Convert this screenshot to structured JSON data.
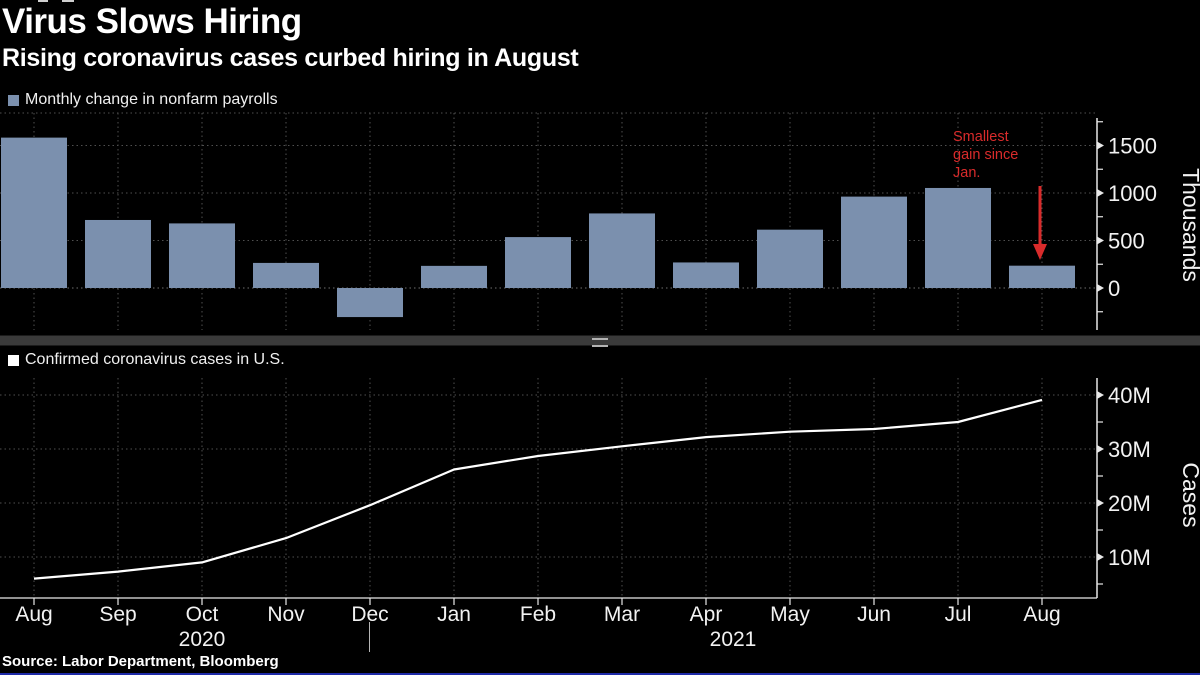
{
  "header": {
    "title": "Virus Slows Hiring",
    "subtitle": "Rising coronavirus cases curbed hiring in August"
  },
  "source": "Source: Labor Department, Bloomberg",
  "colors": {
    "background": "#000000",
    "bar": "#7B90AE",
    "line": "#FFFFFF",
    "grid": "#4f4f4f",
    "zero_grid": "#6e6e6e",
    "axis": "#e8e8e8",
    "tick_text": "#f2f2f2",
    "annotation_red": "#d92b2b"
  },
  "x_axis": {
    "months": [
      "Aug",
      "Sep",
      "Oct",
      "Nov",
      "Dec",
      "Jan",
      "Feb",
      "Mar",
      "Apr",
      "May",
      "Jun",
      "Jul",
      "Aug"
    ],
    "years": [
      {
        "label": "2020"
      },
      {
        "label": "2021"
      }
    ]
  },
  "chart_data": [
    {
      "type": "bar",
      "legend": "Monthly change in nonfarm payrolls",
      "ylabel": "Thousands",
      "categories": [
        "Aug 2020",
        "Sep 2020",
        "Oct 2020",
        "Nov 2020",
        "Dec 2020",
        "Jan 2021",
        "Feb 2021",
        "Mar 2021",
        "Apr 2021",
        "May 2021",
        "Jun 2021",
        "Jul 2021",
        "Aug 2021"
      ],
      "values": [
        1583,
        716,
        680,
        264,
        -306,
        233,
        536,
        785,
        269,
        614,
        962,
        1053,
        235
      ],
      "yticks": [
        0,
        500,
        1000,
        1500
      ],
      "ytick_labels": [
        "0",
        "500",
        "1000",
        "1500"
      ],
      "ylim": [
        -450,
        1770
      ],
      "grid": true,
      "legend_position": "top-left",
      "annotation": {
        "lines": [
          "Smallest",
          "gain since",
          "Jan."
        ],
        "target_category": "Aug 2021",
        "target_value": 235
      }
    },
    {
      "type": "line",
      "legend": "Confirmed coronavirus cases in U.S.",
      "ylabel": "Cases",
      "x": [
        "Aug 2020",
        "Sep 2020",
        "Oct 2020",
        "Nov 2020",
        "Dec 2020",
        "Jan 2021",
        "Feb 2021",
        "Mar 2021",
        "Apr 2021",
        "May 2021",
        "Jun 2021",
        "Jul 2021",
        "Aug 2021"
      ],
      "values_millions": [
        6.0,
        7.3,
        9.0,
        13.5,
        19.6,
        26.2,
        28.7,
        30.5,
        32.2,
        33.2,
        33.7,
        35.0,
        39.1
      ],
      "yticks": [
        10,
        20,
        30,
        40
      ],
      "ytick_labels": [
        "10M",
        "20M",
        "30M",
        "40M"
      ],
      "ylim": [
        0,
        44
      ],
      "grid": true,
      "legend_position": "top-left"
    }
  ]
}
